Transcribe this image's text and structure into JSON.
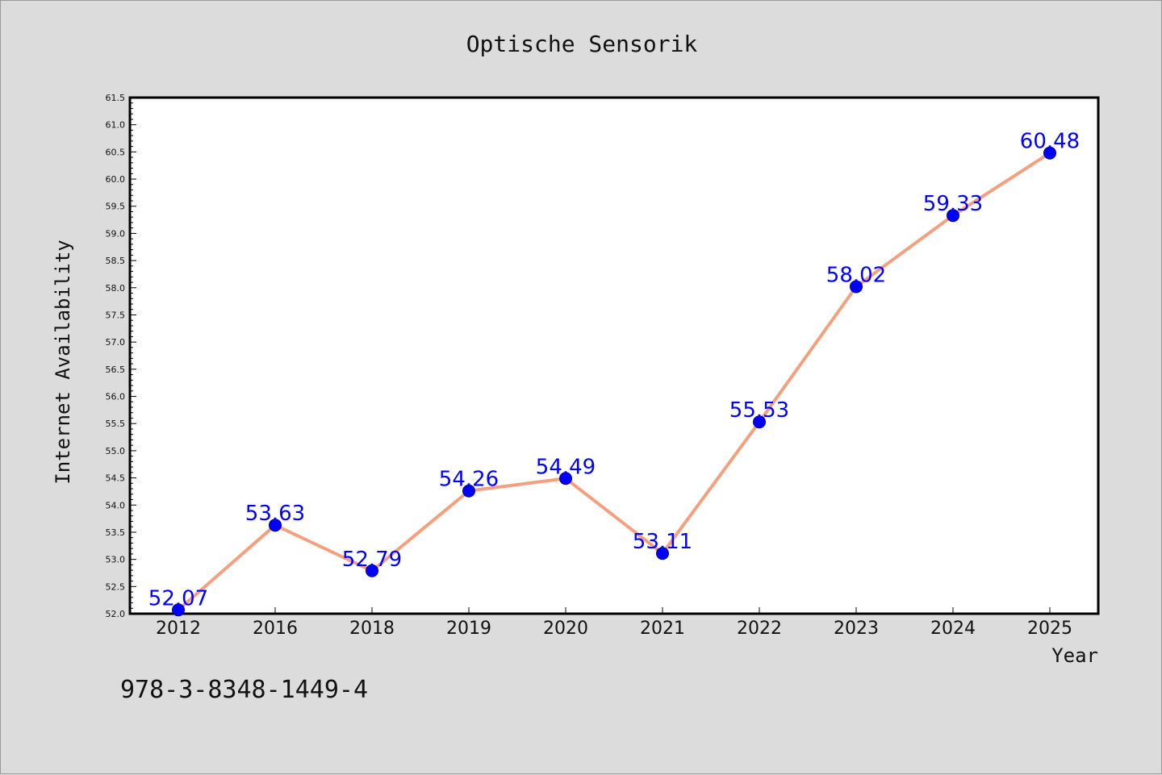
{
  "colors": {
    "background": "#dcdcdc",
    "plot_background": "#ffffff",
    "line": "#f4a07e",
    "marker": "#0000ff",
    "data_label": "#0000ff",
    "text": "#111111"
  },
  "footer": {
    "isbn": "978-3-8348-1449-4"
  },
  "chart_data": {
    "type": "line",
    "title": "Optische Sensorik",
    "xlabel": "Year",
    "ylabel": "Internet Availability",
    "categories": [
      "2012",
      "2016",
      "2018",
      "2019",
      "2020",
      "2021",
      "2022",
      "2023",
      "2024",
      "2025"
    ],
    "values": [
      52.07,
      53.63,
      52.79,
      54.26,
      54.49,
      53.11,
      55.53,
      58.02,
      59.33,
      60.48
    ],
    "data_labels": [
      "52.07",
      "53.63",
      "52.79",
      "54.26",
      "54.49",
      "53.11",
      "55.53",
      "58.02",
      "59.33",
      "60.48"
    ],
    "ylim": [
      52.0,
      61.5
    ],
    "y_ticks": [
      "52.0",
      "52.5",
      "53.0",
      "53.5",
      "54.0",
      "54.5",
      "55.0",
      "55.5",
      "56.0",
      "56.5",
      "57.0",
      "57.5",
      "58.0",
      "58.5",
      "59.0",
      "59.5",
      "60.0",
      "60.5",
      "61.0",
      "61.5"
    ],
    "grid": false,
    "legend": "none",
    "marker": "circle"
  }
}
